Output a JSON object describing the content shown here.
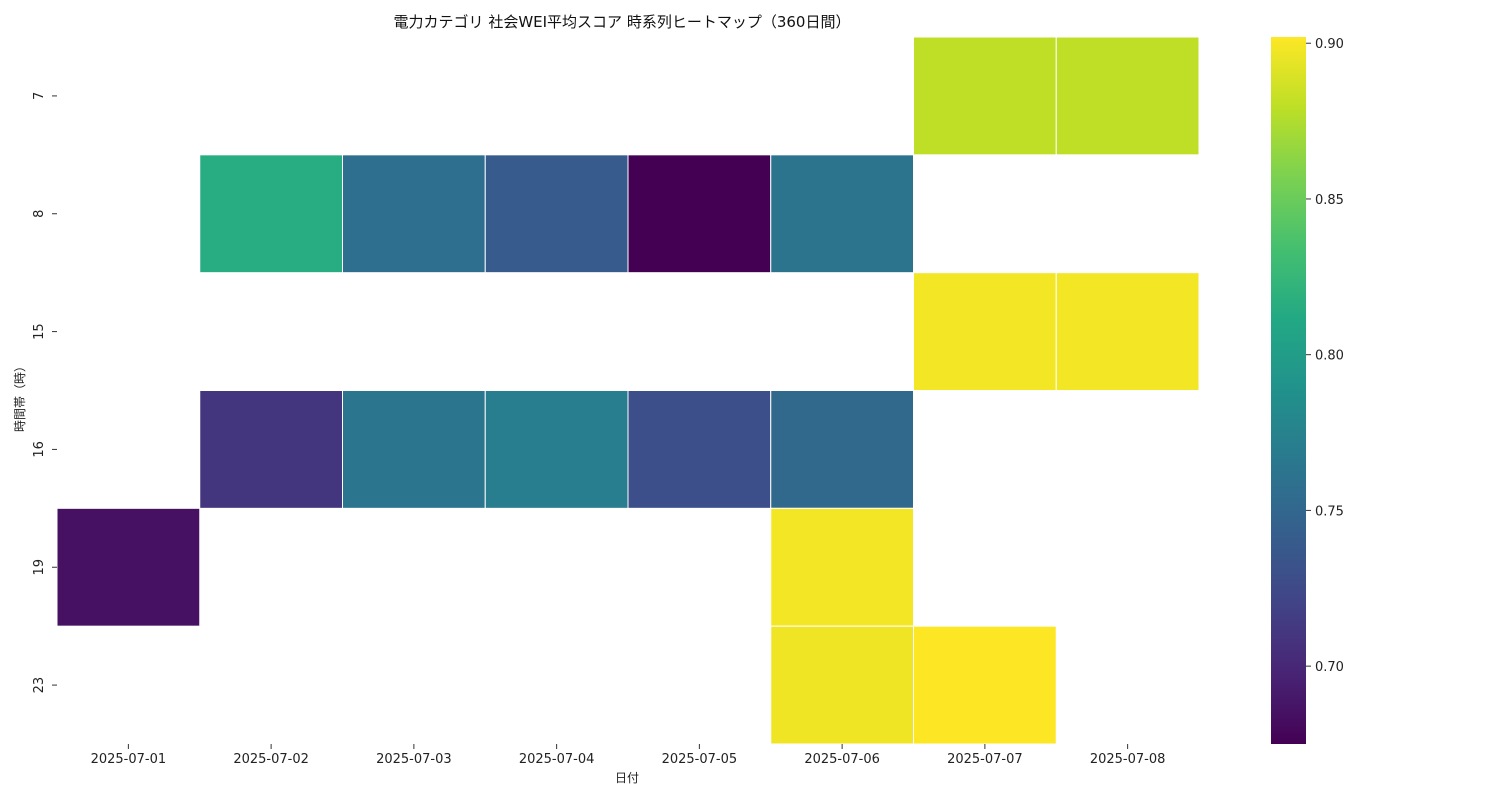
{
  "chart_data": {
    "type": "heatmap",
    "title": "電力カテゴリ 社会WEI平均スコア 時系列ヒートマップ（360日間）",
    "xlabel": "日付",
    "ylabel": "時間帯（時）",
    "x": [
      "2025-07-01",
      "2025-07-02",
      "2025-07-03",
      "2025-07-04",
      "2025-07-05",
      "2025-07-06",
      "2025-07-07",
      "2025-07-08"
    ],
    "y": [
      "7",
      "8",
      "15",
      "16",
      "19",
      "23"
    ],
    "values": [
      [
        null,
        null,
        null,
        null,
        null,
        null,
        0.88,
        0.88
      ],
      [
        null,
        0.815,
        0.757,
        0.74,
        0.675,
        0.762,
        null,
        null
      ],
      [
        null,
        null,
        null,
        null,
        null,
        null,
        0.898,
        0.898
      ],
      [
        null,
        0.71,
        0.763,
        0.77,
        0.73,
        0.752,
        null,
        null
      ],
      [
        0.685,
        null,
        null,
        null,
        null,
        0.898,
        null,
        null
      ],
      [
        null,
        null,
        null,
        null,
        null,
        0.897,
        0.902,
        null
      ]
    ],
    "colormap": "viridis",
    "colorbar": {
      "range": [
        0.675,
        0.902
      ],
      "ticks": [
        0.7,
        0.75,
        0.8,
        0.85,
        0.9
      ],
      "tick_labels": [
        "0.70",
        "0.75",
        "0.80",
        "0.85",
        "0.90"
      ]
    },
    "grid": false,
    "cell_border_color": "#ffffff"
  }
}
